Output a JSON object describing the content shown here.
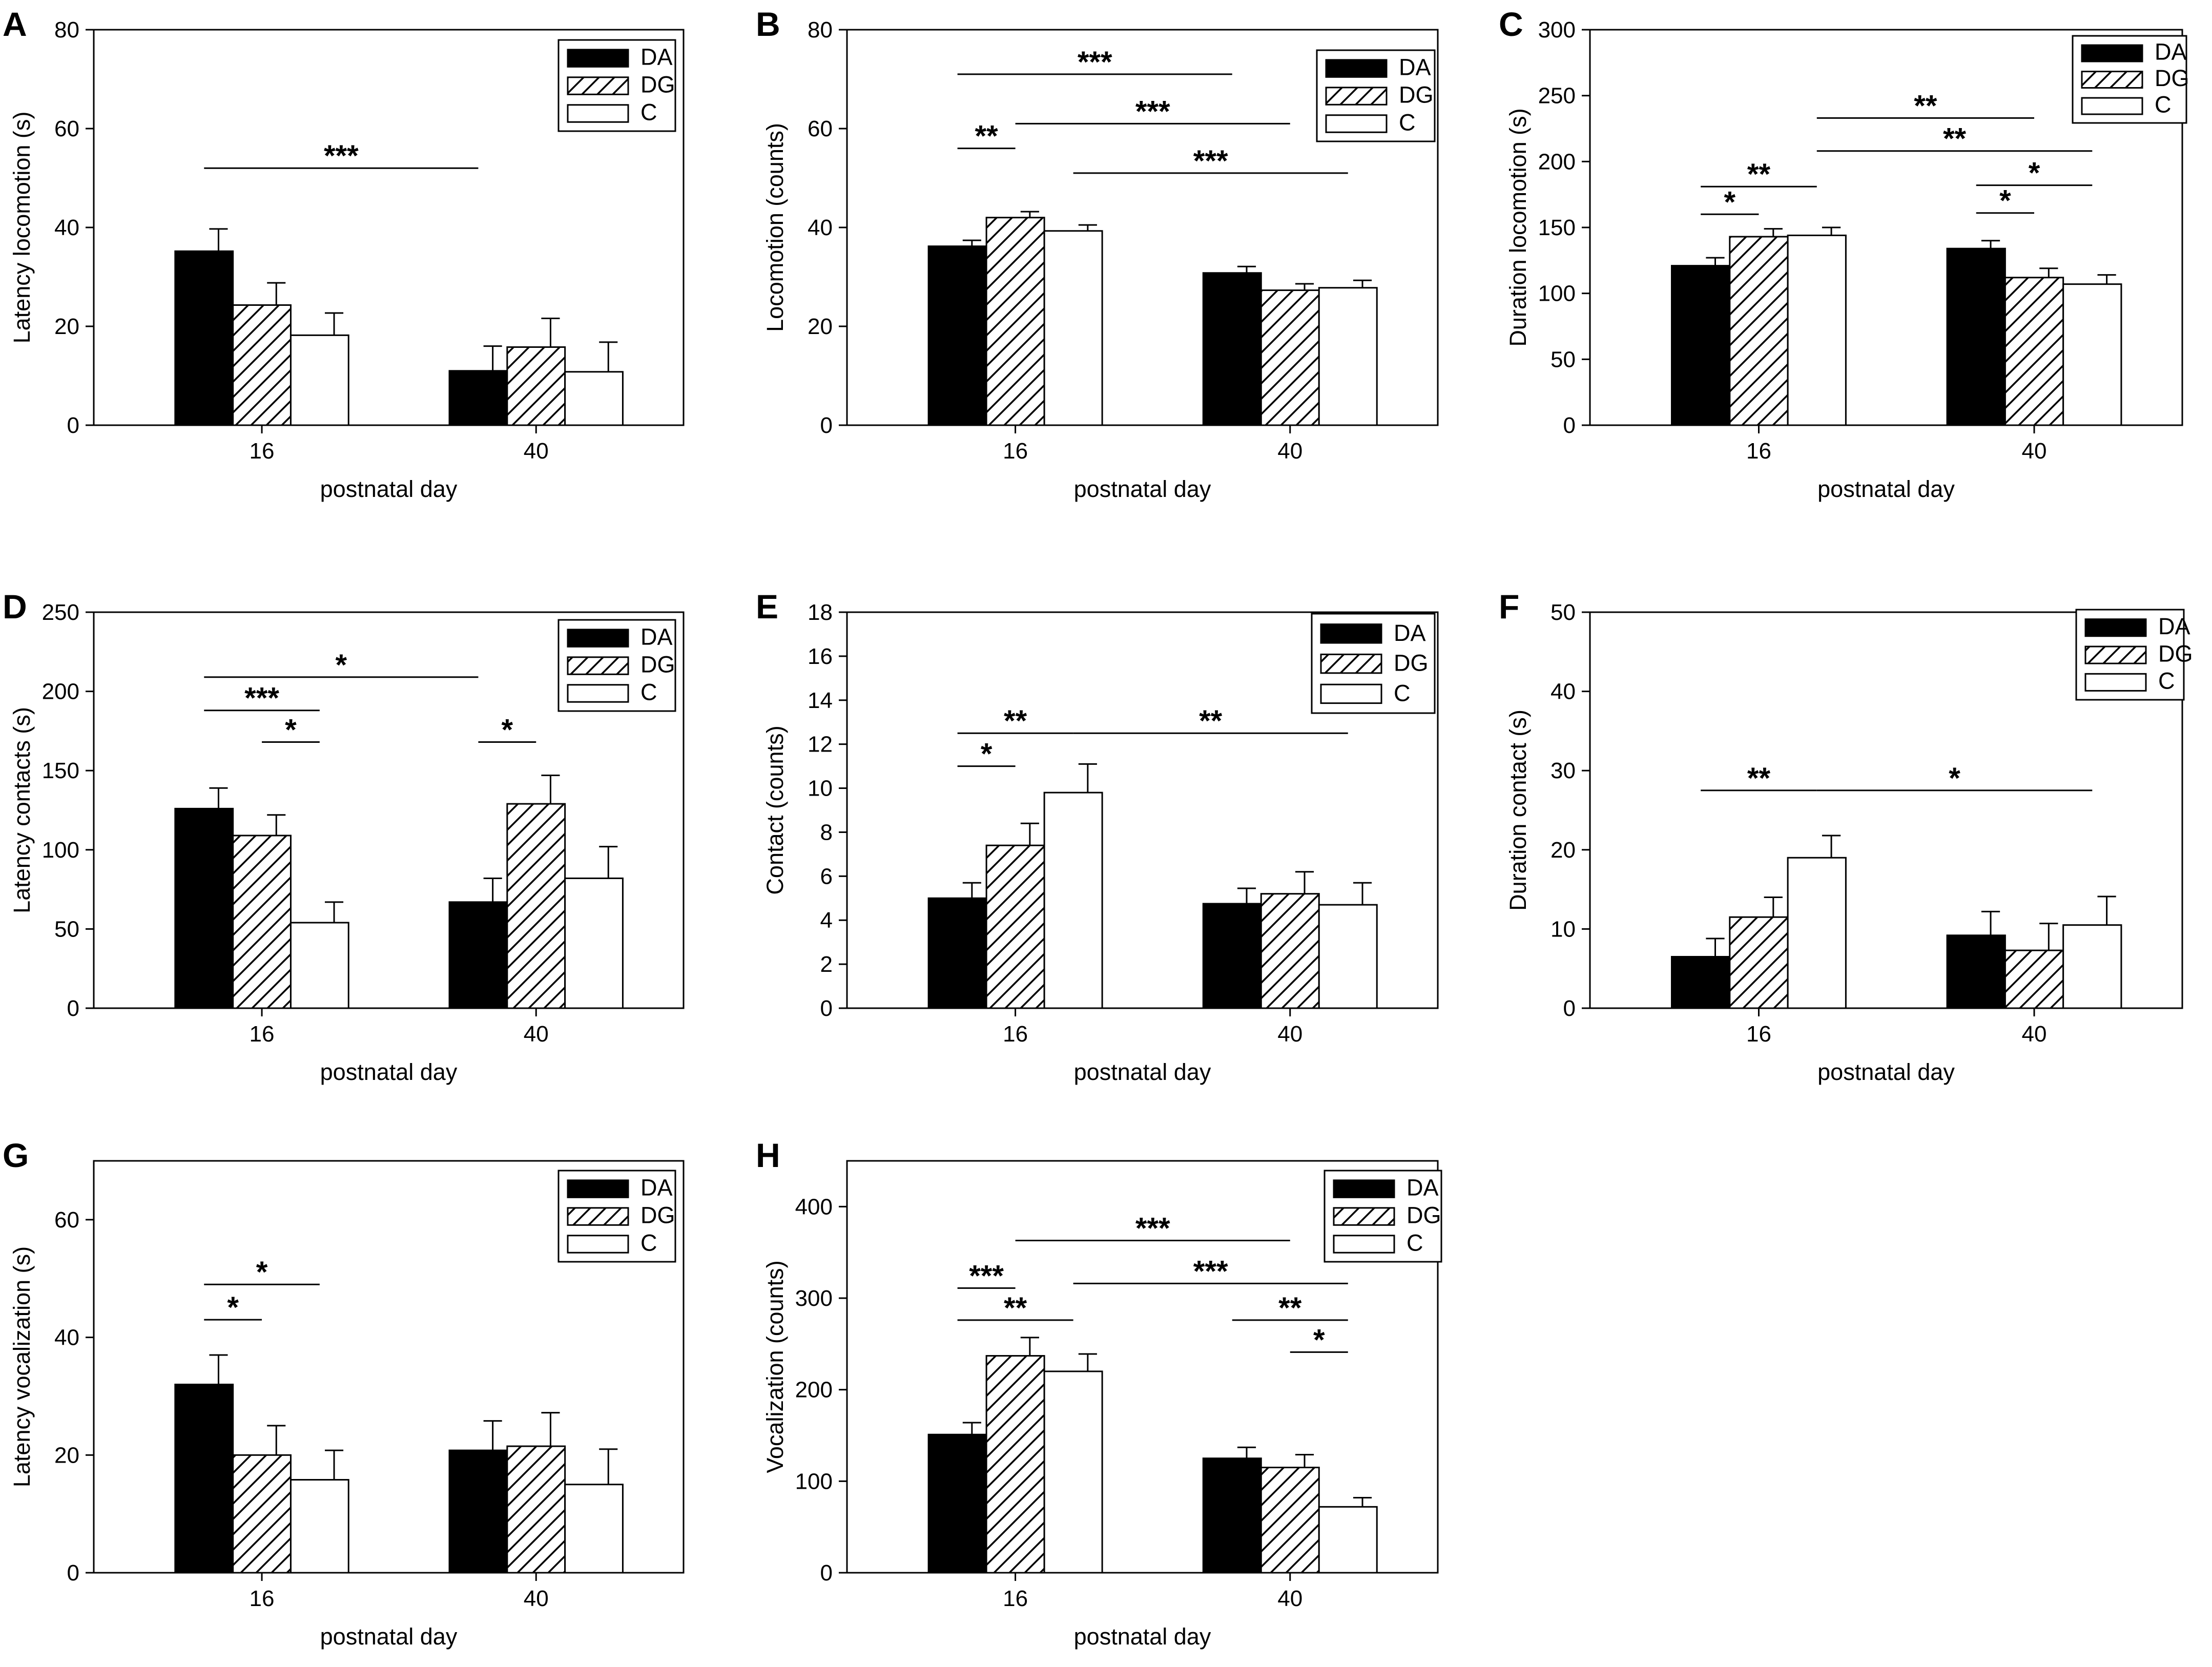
{
  "figure": {
    "groups": [
      "DA",
      "DG",
      "C"
    ],
    "group_fills": [
      "solid",
      "hatch",
      "white"
    ],
    "colors": {
      "ink": "#000000",
      "background": "#ffffff"
    }
  },
  "chart_data": [
    {
      "panel": "A",
      "type": "bar",
      "categories": [
        "16",
        "40"
      ],
      "xlabel": "postnatal day",
      "ylabel": "Latency locomotion (s)",
      "ylim": [
        0,
        80
      ],
      "yticks": [
        0,
        20,
        40,
        60,
        80
      ],
      "legend": "top-right",
      "series": [
        {
          "name": "DA",
          "values": [
            35.2,
            11
          ],
          "errors": [
            4.5,
            5
          ]
        },
        {
          "name": "DG",
          "values": [
            24.3,
            15.8
          ],
          "errors": [
            4.5,
            5.8
          ]
        },
        {
          "name": "C",
          "values": [
            18.2,
            10.8
          ],
          "errors": [
            4.5,
            6
          ]
        }
      ],
      "significance": [
        {
          "from": [
            0,
            0
          ],
          "to": [
            1,
            0
          ],
          "label": "***",
          "y": 52
        }
      ]
    },
    {
      "panel": "B",
      "type": "bar",
      "categories": [
        "16",
        "40"
      ],
      "xlabel": "postnatal day",
      "ylabel": "Locomotion (counts)",
      "ylim": [
        0,
        80
      ],
      "yticks": [
        0,
        20,
        40,
        60,
        80
      ],
      "legend": "top-right",
      "series": [
        {
          "name": "DA",
          "values": [
            36.2,
            30.8
          ],
          "errors": [
            1.2,
            1.3
          ]
        },
        {
          "name": "DG",
          "values": [
            42,
            27.3
          ],
          "errors": [
            1.2,
            1.3
          ]
        },
        {
          "name": "C",
          "values": [
            39.3,
            27.8
          ],
          "errors": [
            1.2,
            1.5
          ]
        }
      ],
      "significance": [
        {
          "from": [
            0,
            0
          ],
          "to": [
            0,
            1
          ],
          "label": "**",
          "y": 56
        },
        {
          "from": [
            0,
            0
          ],
          "to": [
            1,
            0
          ],
          "label": "***",
          "y": 71
        },
        {
          "from": [
            0,
            1
          ],
          "to": [
            1,
            1
          ],
          "label": "***",
          "y": 61
        },
        {
          "from": [
            0,
            2
          ],
          "to": [
            1,
            2
          ],
          "label": "***",
          "y": 51
        }
      ]
    },
    {
      "panel": "C",
      "type": "bar",
      "categories": [
        "16",
        "40"
      ],
      "xlabel": "postnatal day",
      "ylabel": "Duration locomotion (s)",
      "ylim": [
        0,
        300
      ],
      "yticks": [
        0,
        50,
        100,
        150,
        200,
        250,
        300
      ],
      "legend": "top-right",
      "series": [
        {
          "name": "DA",
          "values": [
            121,
            134
          ],
          "errors": [
            6,
            6
          ]
        },
        {
          "name": "DG",
          "values": [
            143,
            112
          ],
          "errors": [
            6,
            7
          ]
        },
        {
          "name": "C",
          "values": [
            144,
            107
          ],
          "errors": [
            6,
            7
          ]
        }
      ],
      "significance": [
        {
          "from": [
            0,
            0
          ],
          "to": [
            0,
            1
          ],
          "label": "*",
          "y": 160
        },
        {
          "from": [
            0,
            0
          ],
          "to": [
            0,
            2
          ],
          "label": "**",
          "y": 181
        },
        {
          "from": [
            0,
            2
          ],
          "to": [
            1,
            1
          ],
          "label": "**",
          "y": 233
        },
        {
          "from": [
            0,
            2
          ],
          "to": [
            1,
            2
          ],
          "label": "**",
          "y": 208
        },
        {
          "from": [
            1,
            0
          ],
          "to": [
            1,
            2
          ],
          "label": "*",
          "y": 182
        },
        {
          "from": [
            1,
            0
          ],
          "to": [
            1,
            1
          ],
          "label": "*",
          "y": 161
        }
      ]
    },
    {
      "panel": "D",
      "type": "bar",
      "categories": [
        "16",
        "40"
      ],
      "xlabel": "postnatal day",
      "ylabel": "Latency contacts (s)",
      "ylim": [
        0,
        250
      ],
      "yticks": [
        0,
        50,
        100,
        150,
        200,
        250
      ],
      "legend": "top-right",
      "series": [
        {
          "name": "DA",
          "values": [
            126,
            67
          ],
          "errors": [
            13,
            15
          ]
        },
        {
          "name": "DG",
          "values": [
            109,
            129
          ],
          "errors": [
            13,
            18
          ]
        },
        {
          "name": "C",
          "values": [
            54,
            82
          ],
          "errors": [
            13,
            20
          ]
        }
      ],
      "significance": [
        {
          "from": [
            0,
            0
          ],
          "to": [
            1,
            0
          ],
          "label": "*",
          "y": 209
        },
        {
          "from": [
            0,
            0
          ],
          "to": [
            0,
            2
          ],
          "label": "***",
          "y": 188
        },
        {
          "from": [
            0,
            1
          ],
          "to": [
            0,
            2
          ],
          "label": "*",
          "y": 168
        },
        {
          "from": [
            1,
            0
          ],
          "to": [
            1,
            1
          ],
          "label": "*",
          "y": 168
        }
      ]
    },
    {
      "panel": "E",
      "type": "bar",
      "categories": [
        "16",
        "40"
      ],
      "xlabel": "postnatal day",
      "ylabel": "Contact (counts)",
      "ylim": [
        0,
        18
      ],
      "yticks": [
        0,
        2,
        4,
        6,
        8,
        10,
        12,
        14,
        16,
        18
      ],
      "legend": "top-right",
      "series": [
        {
          "name": "DA",
          "values": [
            5,
            4.75
          ],
          "errors": [
            0.7,
            0.7
          ]
        },
        {
          "name": "DG",
          "values": [
            7.4,
            5.2
          ],
          "errors": [
            1,
            1
          ]
        },
        {
          "name": "C",
          "values": [
            9.8,
            4.7
          ],
          "errors": [
            1.3,
            1
          ]
        }
      ],
      "significance": [
        {
          "from": [
            0,
            0
          ],
          "to": [
            0,
            1
          ],
          "label": "*",
          "y": 11
        },
        {
          "from": [
            0,
            0
          ],
          "to": [
            0,
            2
          ],
          "label": "**",
          "y": 12.5
        },
        {
          "from": [
            0,
            2
          ],
          "to": [
            1,
            2
          ],
          "label": "**",
          "y": 12.5
        }
      ]
    },
    {
      "panel": "F",
      "type": "bar",
      "categories": [
        "16",
        "40"
      ],
      "xlabel": "postnatal day",
      "ylabel": "Duration contact (s)",
      "ylim": [
        0,
        50
      ],
      "yticks": [
        0,
        10,
        20,
        30,
        40,
        50
      ],
      "legend": "top-right",
      "series": [
        {
          "name": "DA",
          "values": [
            6.5,
            9.2
          ],
          "errors": [
            2.3,
            3
          ]
        },
        {
          "name": "DG",
          "values": [
            11.5,
            7.3
          ],
          "errors": [
            2.5,
            3.4
          ]
        },
        {
          "name": "C",
          "values": [
            19,
            10.5
          ],
          "errors": [
            2.8,
            3.6
          ]
        }
      ],
      "significance": [
        {
          "from": [
            0,
            0
          ],
          "to": [
            0,
            2
          ],
          "label": "**",
          "y": 27.5
        },
        {
          "from": [
            0,
            2
          ],
          "to": [
            1,
            2
          ],
          "label": "*",
          "y": 27.5
        }
      ]
    },
    {
      "panel": "G",
      "type": "bar",
      "categories": [
        "16",
        "40"
      ],
      "xlabel": "postnatal day",
      "ylabel": "Latency vocalization (s)",
      "ylim": [
        0,
        70
      ],
      "yticks": [
        0,
        20,
        40,
        60
      ],
      "legend": "top-right",
      "series": [
        {
          "name": "DA",
          "values": [
            32,
            20.8
          ],
          "errors": [
            5,
            5
          ]
        },
        {
          "name": "DG",
          "values": [
            20,
            21.5
          ],
          "errors": [
            5,
            5.7
          ]
        },
        {
          "name": "C",
          "values": [
            15.8,
            15
          ],
          "errors": [
            5,
            6
          ]
        }
      ],
      "significance": [
        {
          "from": [
            0,
            0
          ],
          "to": [
            0,
            1
          ],
          "label": "*",
          "y": 43
        },
        {
          "from": [
            0,
            0
          ],
          "to": [
            0,
            2
          ],
          "label": "*",
          "y": 49
        }
      ]
    },
    {
      "panel": "H",
      "type": "bar",
      "categories": [
        "16",
        "40"
      ],
      "xlabel": "postnatal day",
      "ylabel": "Vocalization (counts)",
      "ylim": [
        0,
        450
      ],
      "yticks": [
        0,
        100,
        200,
        300,
        400
      ],
      "legend": "top-right",
      "series": [
        {
          "name": "DA",
          "values": [
            151,
            125
          ],
          "errors": [
            13,
            12
          ]
        },
        {
          "name": "DG",
          "values": [
            237,
            115
          ],
          "errors": [
            20,
            14
          ]
        },
        {
          "name": "C",
          "values": [
            220,
            72
          ],
          "errors": [
            19,
            10
          ]
        }
      ],
      "significance": [
        {
          "from": [
            0,
            0
          ],
          "to": [
            0,
            1
          ],
          "label": "***",
          "y": 311
        },
        {
          "from": [
            0,
            0
          ],
          "to": [
            0,
            2
          ],
          "label": "**",
          "y": 276
        },
        {
          "from": [
            0,
            1
          ],
          "to": [
            1,
            1
          ],
          "label": "***",
          "y": 363
        },
        {
          "from": [
            0,
            2
          ],
          "to": [
            1,
            2
          ],
          "label": "***",
          "y": 316
        },
        {
          "from": [
            1,
            0
          ],
          "to": [
            1,
            2
          ],
          "label": "**",
          "y": 276
        },
        {
          "from": [
            1,
            1
          ],
          "to": [
            1,
            2
          ],
          "label": "*",
          "y": 241
        }
      ]
    }
  ]
}
